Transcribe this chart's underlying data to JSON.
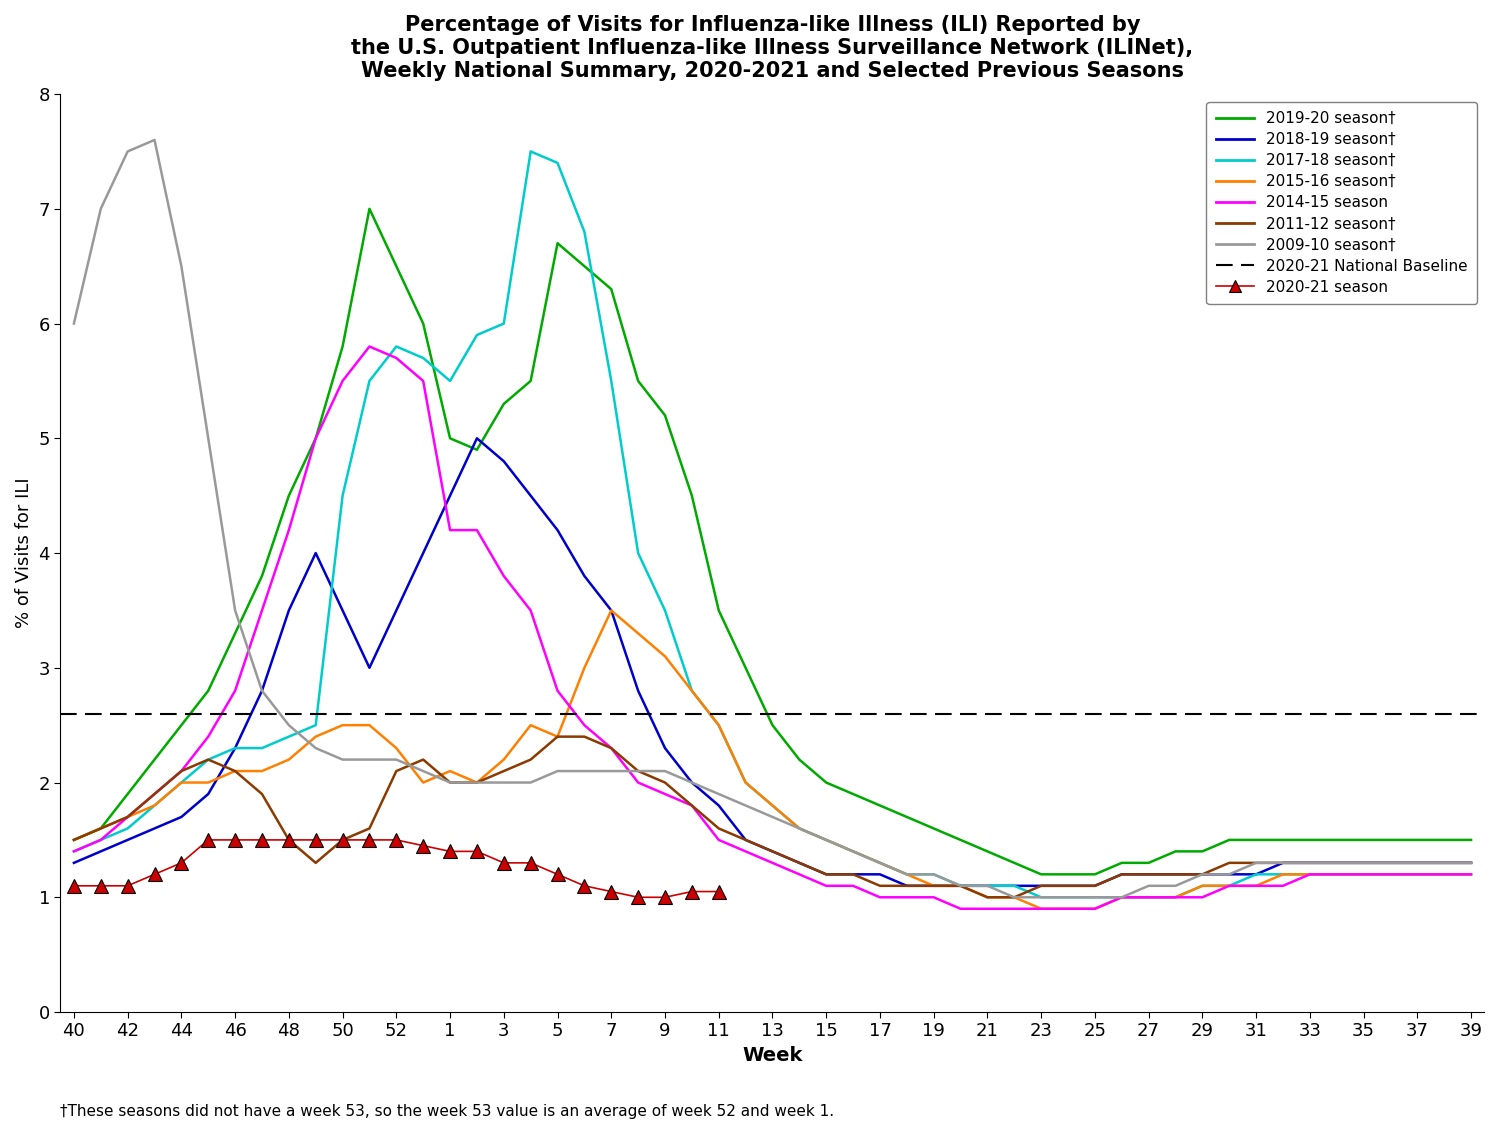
{
  "title": "Percentage of Visits for Influenza-like Illness (ILI) Reported by\nthe U.S. Outpatient Influenza-like Illness Surveillance Network (ILINet),\nWeekly National Summary, 2020-2021 and Selected Previous Seasons",
  "xlabel": "Week",
  "ylabel": "% of Visits for ILI",
  "ylim": [
    0,
    8
  ],
  "yticks": [
    0,
    1,
    2,
    3,
    4,
    5,
    6,
    7,
    8
  ],
  "baseline": 2.6,
  "footnote": "†These seasons did not have a week 53, so the week 53 value is an average of week 52 and week 1.",
  "tick_labels": [
    "40",
    "42",
    "44",
    "46",
    "48",
    "50",
    "52",
    "1",
    "3",
    "5",
    "7",
    "9",
    "11",
    "13",
    "15",
    "17",
    "19",
    "21",
    "23",
    "25",
    "27",
    "29",
    "31",
    "33",
    "35",
    "37",
    "39"
  ],
  "tick_positions": [
    0,
    2,
    4,
    6,
    8,
    10,
    12,
    14,
    16,
    18,
    20,
    22,
    24,
    26,
    28,
    30,
    32,
    34,
    36,
    38,
    40,
    42,
    44,
    46,
    48,
    50,
    52
  ],
  "seasons": [
    {
      "name": "2019-20 season†",
      "color": "#00AA00",
      "lw": 1.8,
      "data": [
        1.5,
        1.6,
        1.9,
        2.2,
        2.5,
        2.8,
        3.3,
        3.8,
        4.5,
        5.0,
        5.8,
        7.0,
        6.5,
        6.0,
        5.0,
        4.9,
        5.3,
        5.5,
        6.7,
        6.5,
        6.3,
        5.5,
        5.2,
        4.5,
        3.5,
        3.0,
        2.5,
        2.2,
        2.0,
        1.9,
        1.8,
        1.7,
        1.6,
        1.5,
        1.4,
        1.3,
        1.2,
        1.2,
        1.2,
        1.3,
        1.3,
        1.4,
        1.4,
        1.5,
        1.5,
        1.5,
        1.5,
        1.5,
        1.5,
        1.5,
        1.5,
        1.5,
        1.5
      ]
    },
    {
      "name": "2018-19 season†",
      "color": "#0000CC",
      "lw": 1.8,
      "data": [
        1.3,
        1.4,
        1.5,
        1.6,
        1.7,
        1.9,
        2.3,
        2.8,
        3.5,
        4.0,
        3.5,
        3.0,
        3.5,
        4.0,
        4.5,
        5.0,
        4.8,
        4.5,
        4.2,
        3.8,
        3.5,
        2.8,
        2.3,
        2.0,
        1.8,
        1.5,
        1.4,
        1.3,
        1.2,
        1.2,
        1.2,
        1.1,
        1.1,
        1.1,
        1.1,
        1.1,
        1.1,
        1.1,
        1.1,
        1.2,
        1.2,
        1.2,
        1.2,
        1.2,
        1.2,
        1.3,
        1.3,
        1.3,
        1.3,
        1.3,
        1.3,
        1.3,
        1.3
      ]
    },
    {
      "name": "2017-18 season†",
      "color": "#00CCCC",
      "lw": 1.8,
      "data": [
        1.4,
        1.5,
        1.6,
        1.8,
        2.0,
        2.2,
        2.3,
        2.3,
        2.4,
        2.5,
        4.5,
        5.5,
        5.8,
        5.7,
        5.5,
        5.9,
        6.0,
        7.5,
        7.4,
        6.8,
        5.5,
        4.0,
        3.5,
        2.8,
        2.5,
        2.0,
        1.8,
        1.6,
        1.5,
        1.4,
        1.3,
        1.2,
        1.2,
        1.1,
        1.1,
        1.1,
        1.0,
        1.0,
        1.0,
        1.0,
        1.0,
        1.0,
        1.1,
        1.1,
        1.2,
        1.2,
        1.2,
        1.2,
        1.2,
        1.2,
        1.2,
        1.2,
        1.2
      ]
    },
    {
      "name": "2015-16 season†",
      "color": "#FF8000",
      "lw": 1.8,
      "data": [
        1.5,
        1.6,
        1.7,
        1.8,
        2.0,
        2.0,
        2.1,
        2.1,
        2.2,
        2.4,
        2.5,
        2.5,
        2.3,
        2.0,
        2.1,
        2.0,
        2.2,
        2.5,
        2.4,
        3.0,
        3.5,
        3.3,
        3.1,
        2.8,
        2.5,
        2.0,
        1.8,
        1.6,
        1.5,
        1.4,
        1.3,
        1.2,
        1.1,
        1.1,
        1.0,
        1.0,
        0.9,
        0.9,
        0.9,
        1.0,
        1.0,
        1.0,
        1.1,
        1.1,
        1.1,
        1.2,
        1.2,
        1.2,
        1.2,
        1.2,
        1.2,
        1.2,
        1.2
      ]
    },
    {
      "name": "2014-15 season",
      "color": "#FF00FF",
      "lw": 1.8,
      "data": [
        1.4,
        1.5,
        1.7,
        1.9,
        2.1,
        2.4,
        2.8,
        3.5,
        4.2,
        5.0,
        5.5,
        5.8,
        5.7,
        5.5,
        4.2,
        4.2,
        3.8,
        3.5,
        2.8,
        2.5,
        2.3,
        2.0,
        1.9,
        1.8,
        1.5,
        1.4,
        1.3,
        1.2,
        1.1,
        1.1,
        1.0,
        1.0,
        1.0,
        0.9,
        0.9,
        0.9,
        0.9,
        0.9,
        0.9,
        1.0,
        1.0,
        1.0,
        1.0,
        1.1,
        1.1,
        1.1,
        1.2,
        1.2,
        1.2,
        1.2,
        1.2,
        1.2,
        1.2
      ]
    },
    {
      "name": "2011-12 season†",
      "color": "#8B3A00",
      "lw": 1.8,
      "data": [
        1.5,
        1.6,
        1.7,
        1.9,
        2.1,
        2.2,
        2.1,
        1.9,
        1.5,
        1.3,
        1.5,
        1.6,
        2.1,
        2.2,
        2.0,
        2.0,
        2.1,
        2.2,
        2.4,
        2.4,
        2.3,
        2.1,
        2.0,
        1.8,
        1.6,
        1.5,
        1.4,
        1.3,
        1.2,
        1.2,
        1.1,
        1.1,
        1.1,
        1.1,
        1.0,
        1.0,
        1.1,
        1.1,
        1.1,
        1.2,
        1.2,
        1.2,
        1.2,
        1.3,
        1.3,
        1.3,
        1.3,
        1.3,
        1.3,
        1.3,
        1.3,
        1.3,
        1.3
      ]
    },
    {
      "name": "2009-10 season†",
      "color": "#999999",
      "lw": 1.8,
      "data": [
        6.0,
        7.0,
        7.5,
        7.6,
        6.5,
        5.0,
        3.5,
        2.8,
        2.5,
        2.3,
        2.2,
        2.2,
        2.2,
        2.1,
        2.0,
        2.0,
        2.0,
        2.0,
        2.1,
        2.1,
        2.1,
        2.1,
        2.1,
        2.0,
        1.9,
        1.8,
        1.7,
        1.6,
        1.5,
        1.4,
        1.3,
        1.2,
        1.2,
        1.1,
        1.1,
        1.0,
        1.0,
        1.0,
        1.0,
        1.0,
        1.1,
        1.1,
        1.2,
        1.2,
        1.3,
        1.3,
        1.3,
        1.3,
        1.3,
        1.3,
        1.3,
        1.3,
        1.3
      ]
    }
  ],
  "season_2020_21": {
    "name": "2020-21 season",
    "color": "#CC0000",
    "marker": "^",
    "markersize": 10,
    "linecolor": "#CC0000",
    "linewidth": 1.2,
    "x_indices": [
      0,
      1,
      2,
      3,
      4,
      5,
      6,
      7,
      8,
      9,
      10,
      11,
      12,
      13,
      14,
      15,
      16,
      17,
      18,
      19,
      20,
      21,
      22,
      23,
      24
    ],
    "data": [
      1.1,
      1.1,
      1.1,
      1.2,
      1.3,
      1.5,
      1.5,
      1.5,
      1.5,
      1.5,
      1.5,
      1.5,
      1.5,
      1.45,
      1.4,
      1.4,
      1.3,
      1.3,
      1.2,
      1.1,
      1.05,
      1.0,
      1.0,
      1.05,
      1.05
    ]
  }
}
